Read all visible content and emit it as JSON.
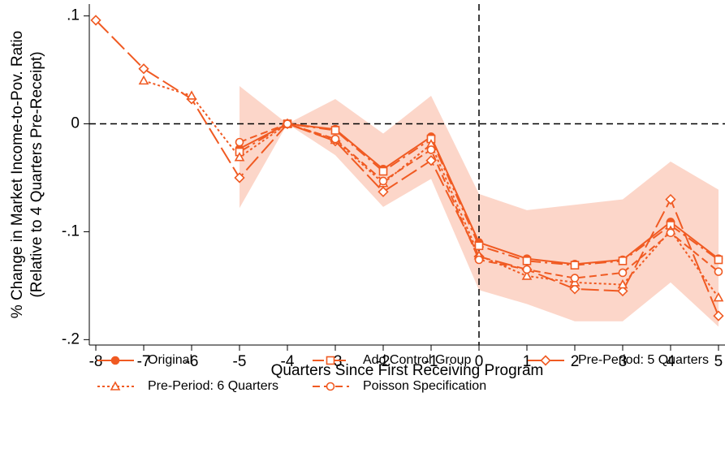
{
  "chart_data": {
    "type": "line",
    "xlabel": "Quarters Since First Receiving Program",
    "ylabel": [
      "% Change in Market Income-to-Pov. Ratio",
      "(Relative to 4 Quarters Pre-Receipt)"
    ],
    "x": [
      -8,
      -7,
      -6,
      -5,
      -4,
      -3,
      -2,
      -1,
      0,
      1,
      2,
      3,
      4,
      5
    ],
    "xlim": [
      -8.136,
      5.136
    ],
    "ylim": [
      -0.205,
      0.111
    ],
    "xticks": [
      -8,
      -7,
      -6,
      -5,
      -4,
      -3,
      -2,
      -1,
      0,
      1,
      2,
      3,
      4,
      5
    ],
    "yticks": [
      {
        "value": 0.1,
        "label": ".1"
      },
      0,
      {
        "value": -0.1,
        "label": "-.1"
      },
      {
        "value": -0.2,
        "label": "-.2"
      }
    ],
    "hline": 0,
    "vline": 0,
    "band_color": "#fcd6c9",
    "ci_upper": [
      null,
      null,
      null,
      0.035,
      0,
      0.023,
      -0.009,
      0.026,
      -0.065,
      -0.08,
      -0.075,
      -0.07,
      -0.035,
      -0.061
    ],
    "ci_lower": [
      null,
      null,
      null,
      -0.078,
      0,
      -0.029,
      -0.077,
      -0.051,
      -0.154,
      -0.167,
      -0.183,
      -0.183,
      -0.147,
      -0.188
    ],
    "series": [
      {
        "name": "Original",
        "color": "#f05a22",
        "line_style": "solid",
        "marker": "circle-filled",
        "values": [
          null,
          null,
          null,
          -0.023,
          0,
          -0.005,
          -0.042,
          -0.012,
          -0.11,
          -0.125,
          -0.13,
          -0.126,
          -0.091,
          -0.125
        ]
      },
      {
        "name": "Add Control Group",
        "color": "#f05a22",
        "line_style": "longdash",
        "marker": "square",
        "values": [
          null,
          null,
          null,
          -0.026,
          0,
          -0.006,
          -0.044,
          -0.014,
          -0.113,
          -0.127,
          -0.131,
          -0.127,
          -0.094,
          -0.126
        ]
      },
      {
        "name": "Pre-Period: 5 Quarters",
        "color": "#f05a22",
        "line_style": "longdash2",
        "marker": "diamond",
        "values": [
          0.096,
          0.051,
          0.023,
          -0.05,
          0,
          -0.016,
          -0.063,
          -0.034,
          -0.123,
          -0.135,
          -0.153,
          -0.155,
          -0.07,
          -0.178
        ]
      },
      {
        "name": "Pre-Period: 6 Quarters",
        "color": "#f05a22",
        "line_style": "dot",
        "marker": "triangle",
        "values": [
          null,
          0.04,
          0.026,
          -0.031,
          0,
          -0.015,
          -0.055,
          -0.019,
          -0.122,
          -0.141,
          -0.147,
          -0.149,
          -0.099,
          -0.161
        ]
      },
      {
        "name": "Poisson Specification",
        "color": "#f05a22",
        "line_style": "dash",
        "marker": "circle",
        "values": [
          null,
          null,
          null,
          -0.017,
          0,
          -0.014,
          -0.053,
          -0.024,
          -0.126,
          -0.135,
          -0.143,
          -0.138,
          -0.101,
          -0.137
        ]
      }
    ]
  }
}
